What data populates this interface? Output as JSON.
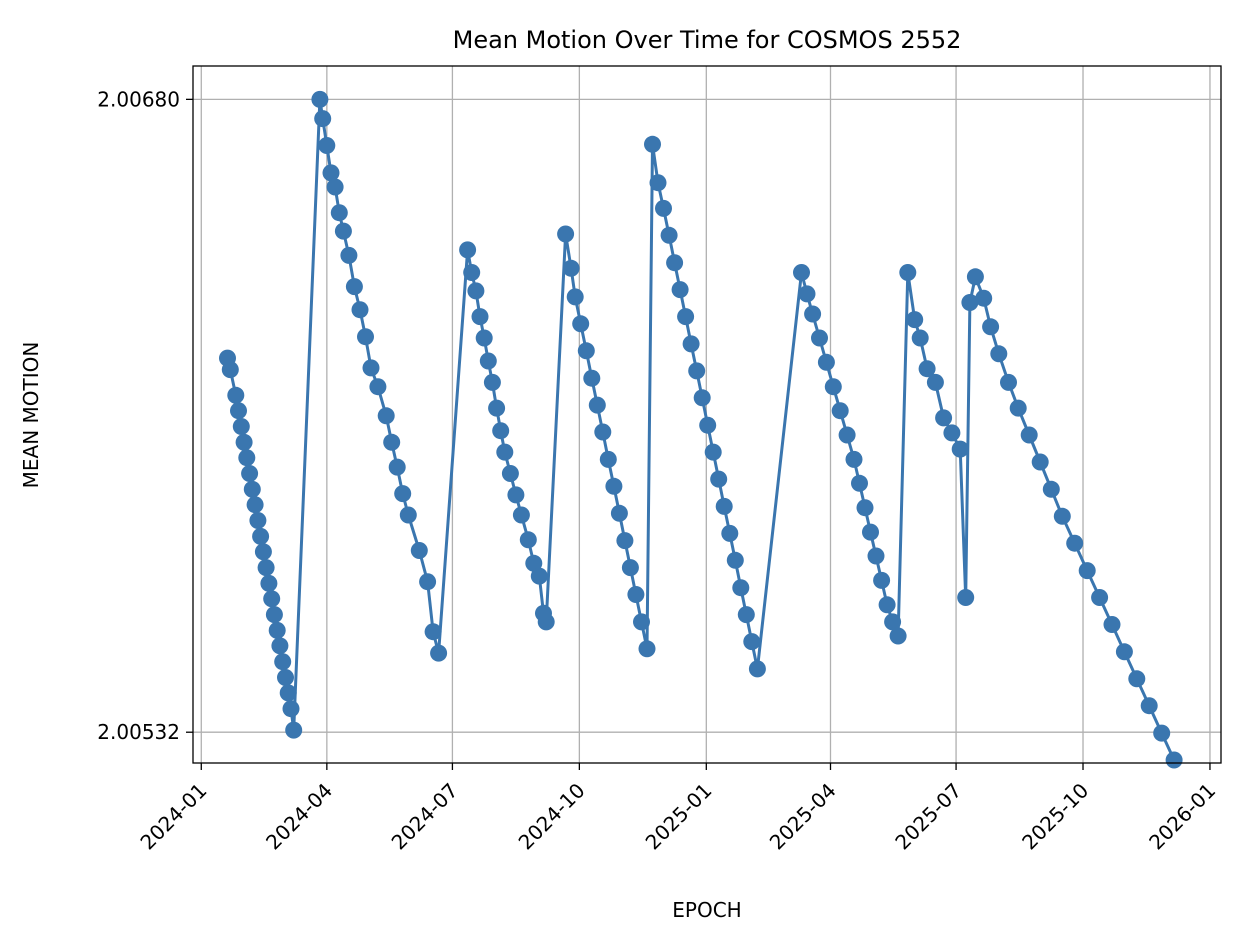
{
  "chart_data": {
    "type": "line",
    "title": "Mean Motion Over Time for COSMOS 2552",
    "xlabel": "EPOCH",
    "ylabel": "MEAN MOTION",
    "xlim": [
      "2023-12-26",
      "2026-01-09"
    ],
    "ylim": [
      2.005248,
      2.006878
    ],
    "grid": true,
    "legend": "none",
    "marker": "circle",
    "color": "#3a76af",
    "x_ticks": [
      "2024-01",
      "2024-04",
      "2024-07",
      "2024-10",
      "2025-01",
      "2025-04",
      "2025-07",
      "2025-10",
      "2026-01"
    ],
    "y_ticks": [
      "2.00532",
      "2.00680"
    ],
    "y_tick_values": [
      2.00532,
      2.0068
    ],
    "series": [
      {
        "points": [
          [
            "2024-01-20",
            2.006195
          ],
          [
            "2024-01-22",
            2.006168
          ],
          [
            "2024-01-26",
            2.006108
          ],
          [
            "2024-01-28",
            2.006072
          ],
          [
            "2024-01-30",
            2.006035
          ],
          [
            "2024-02-01",
            2.005998
          ],
          [
            "2024-02-03",
            2.005962
          ],
          [
            "2024-02-05",
            2.005925
          ],
          [
            "2024-02-07",
            2.005888
          ],
          [
            "2024-02-09",
            2.005852
          ],
          [
            "2024-02-11",
            2.005815
          ],
          [
            "2024-02-13",
            2.005778
          ],
          [
            "2024-02-15",
            2.005742
          ],
          [
            "2024-02-17",
            2.005705
          ],
          [
            "2024-02-19",
            2.005668
          ],
          [
            "2024-02-21",
            2.005632
          ],
          [
            "2024-02-23",
            2.005595
          ],
          [
            "2024-02-25",
            2.005558
          ],
          [
            "2024-02-27",
            2.005522
          ],
          [
            "2024-02-29",
            2.005485
          ],
          [
            "2024-03-02",
            2.005448
          ],
          [
            "2024-03-04",
            2.005412
          ],
          [
            "2024-03-06",
            2.005375
          ],
          [
            "2024-03-08",
            2.005325
          ],
          [
            "2024-03-27",
            2.0068
          ],
          [
            "2024-03-29",
            2.006755
          ],
          [
            "2024-04-01",
            2.006692
          ],
          [
            "2024-04-04",
            2.006628
          ],
          [
            "2024-04-07",
            2.006595
          ],
          [
            "2024-04-10",
            2.006535
          ],
          [
            "2024-04-13",
            2.006492
          ],
          [
            "2024-04-17",
            2.006435
          ],
          [
            "2024-04-21",
            2.006362
          ],
          [
            "2024-04-25",
            2.006308
          ],
          [
            "2024-04-29",
            2.006245
          ],
          [
            "2024-05-03",
            2.006172
          ],
          [
            "2024-05-08",
            2.006128
          ],
          [
            "2024-05-14",
            2.00606
          ],
          [
            "2024-05-18",
            2.005998
          ],
          [
            "2024-05-22",
            2.00594
          ],
          [
            "2024-05-26",
            2.005878
          ],
          [
            "2024-05-30",
            2.005828
          ],
          [
            "2024-06-07",
            2.005745
          ],
          [
            "2024-06-13",
            2.005672
          ],
          [
            "2024-06-17",
            2.005555
          ],
          [
            "2024-06-21",
            2.005505
          ],
          [
            "2024-07-12",
            2.006448
          ],
          [
            "2024-07-15",
            2.006395
          ],
          [
            "2024-07-18",
            2.006352
          ],
          [
            "2024-07-21",
            2.006292
          ],
          [
            "2024-07-24",
            2.006242
          ],
          [
            "2024-07-27",
            2.006188
          ],
          [
            "2024-07-30",
            2.006138
          ],
          [
            "2024-08-02",
            2.006078
          ],
          [
            "2024-08-05",
            2.006025
          ],
          [
            "2024-08-08",
            2.005975
          ],
          [
            "2024-08-12",
            2.005925
          ],
          [
            "2024-08-16",
            2.005875
          ],
          [
            "2024-08-20",
            2.005828
          ],
          [
            "2024-08-25",
            2.00577
          ],
          [
            "2024-08-29",
            2.005715
          ],
          [
            "2024-09-02",
            2.005685
          ],
          [
            "2024-09-05",
            2.005598
          ],
          [
            "2024-09-07",
            2.005578
          ],
          [
            "2024-09-21",
            2.006485
          ],
          [
            "2024-09-25",
            2.006405
          ],
          [
            "2024-09-28",
            2.006338
          ],
          [
            "2024-10-02",
            2.006275
          ],
          [
            "2024-10-06",
            2.006212
          ],
          [
            "2024-10-10",
            2.006148
          ],
          [
            "2024-10-14",
            2.006085
          ],
          [
            "2024-10-18",
            2.006022
          ],
          [
            "2024-10-22",
            2.005958
          ],
          [
            "2024-10-26",
            2.005895
          ],
          [
            "2024-10-30",
            2.005832
          ],
          [
            "2024-11-03",
            2.005768
          ],
          [
            "2024-11-07",
            2.005705
          ],
          [
            "2024-11-11",
            2.005642
          ],
          [
            "2024-11-15",
            2.005578
          ],
          [
            "2024-11-19",
            2.005515
          ],
          [
            "2024-11-23",
            2.006695
          ],
          [
            "2024-11-27",
            2.006605
          ],
          [
            "2024-12-01",
            2.006545
          ],
          [
            "2024-12-05",
            2.006482
          ],
          [
            "2024-12-09",
            2.006418
          ],
          [
            "2024-12-13",
            2.006355
          ],
          [
            "2024-12-17",
            2.006292
          ],
          [
            "2024-12-21",
            2.006228
          ],
          [
            "2024-12-25",
            2.006165
          ],
          [
            "2024-12-29",
            2.006102
          ],
          [
            "2025-01-02",
            2.006038
          ],
          [
            "2025-01-06",
            2.005975
          ],
          [
            "2025-01-10",
            2.005912
          ],
          [
            "2025-01-14",
            2.005848
          ],
          [
            "2025-01-18",
            2.005785
          ],
          [
            "2025-01-22",
            2.005722
          ],
          [
            "2025-01-26",
            2.005658
          ],
          [
            "2025-01-30",
            2.005595
          ],
          [
            "2025-02-03",
            2.005532
          ],
          [
            "2025-02-07",
            2.005468
          ],
          [
            "2025-03-11",
            2.006395
          ],
          [
            "2025-03-15",
            2.006345
          ],
          [
            "2025-03-19",
            2.006298
          ],
          [
            "2025-03-24",
            2.006242
          ],
          [
            "2025-03-29",
            2.006185
          ],
          [
            "2025-04-03",
            2.006128
          ],
          [
            "2025-04-08",
            2.006072
          ],
          [
            "2025-04-13",
            2.006015
          ],
          [
            "2025-04-18",
            2.005958
          ],
          [
            "2025-04-22",
            2.005902
          ],
          [
            "2025-04-26",
            2.005845
          ],
          [
            "2025-04-30",
            2.005788
          ],
          [
            "2025-05-04",
            2.005732
          ],
          [
            "2025-05-08",
            2.005675
          ],
          [
            "2025-05-12",
            2.005618
          ],
          [
            "2025-05-16",
            2.005578
          ],
          [
            "2025-05-20",
            2.005545
          ],
          [
            "2025-05-27",
            2.006395
          ],
          [
            "2025-06-01",
            2.006285
          ],
          [
            "2025-06-05",
            2.006242
          ],
          [
            "2025-06-10",
            2.00617
          ],
          [
            "2025-06-16",
            2.006138
          ],
          [
            "2025-06-22",
            2.006055
          ],
          [
            "2025-06-28",
            2.00602
          ],
          [
            "2025-07-04",
            2.005982
          ],
          [
            "2025-07-08",
            2.005635
          ],
          [
            "2025-07-11",
            2.006325
          ],
          [
            "2025-07-15",
            2.006385
          ],
          [
            "2025-07-21",
            2.006335
          ],
          [
            "2025-07-26",
            2.006268
          ],
          [
            "2025-08-01",
            2.006205
          ],
          [
            "2025-08-08",
            2.006138
          ],
          [
            "2025-08-15",
            2.006078
          ],
          [
            "2025-08-23",
            2.006015
          ],
          [
            "2025-08-31",
            2.005952
          ],
          [
            "2025-09-08",
            2.005888
          ],
          [
            "2025-09-16",
            2.005825
          ],
          [
            "2025-09-25",
            2.005762
          ],
          [
            "2025-10-04",
            2.005698
          ],
          [
            "2025-10-13",
            2.005635
          ],
          [
            "2025-10-22",
            2.005572
          ],
          [
            "2025-10-31",
            2.005508
          ],
          [
            "2025-11-09",
            2.005445
          ],
          [
            "2025-11-18",
            2.005382
          ],
          [
            "2025-11-27",
            2.005318
          ],
          [
            "2025-12-06",
            2.005255
          ]
        ]
      }
    ]
  }
}
